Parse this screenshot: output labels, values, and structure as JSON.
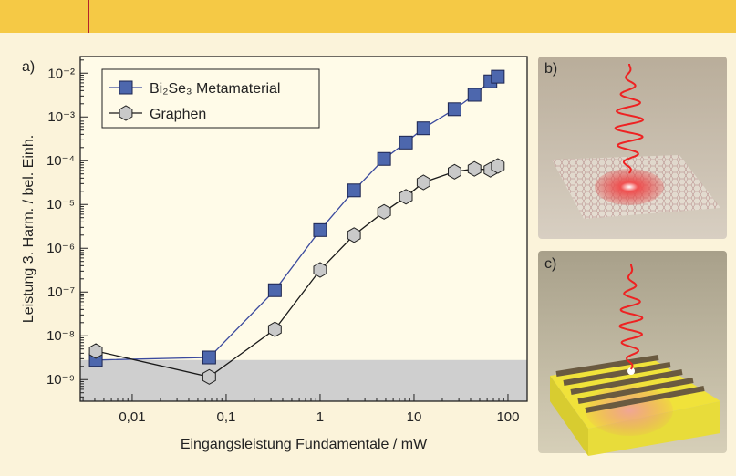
{
  "chart_data": {
    "type": "line",
    "log_x": true,
    "log_y": true,
    "panel_label": "a)",
    "x_label": "Eingangsleistung Fundamentale / mW",
    "y_label": "Leistung 3. Harm. / bel. Einh.",
    "xlim": [
      0.0028,
      160
    ],
    "ylim": [
      3.2e-10,
      0.024
    ],
    "xticks": [
      {
        "value": 0.01,
        "label": "0,01"
      },
      {
        "value": 0.1,
        "label": "0,1"
      },
      1,
      10,
      100
    ],
    "yticks": [
      {
        "value": 1e-09,
        "label": "10⁻⁹"
      },
      {
        "value": 1e-08,
        "label": "10⁻⁸"
      },
      {
        "value": 1e-07,
        "label": "10⁻⁷"
      },
      {
        "value": 1e-06,
        "label": "10⁻⁶"
      },
      {
        "value": 1e-05,
        "label": "10⁻⁵"
      },
      {
        "value": 0.0001,
        "label": "10⁻⁴"
      },
      {
        "value": 0.001,
        "label": "10⁻³"
      },
      {
        "value": 0.01,
        "label": "10⁻²"
      }
    ],
    "noise_level": 2.8e-09,
    "noise_color": "#cfcfcf",
    "series": [
      {
        "name": "Bi₂Se₃ Metamaterial",
        "color": "#3b4a9e",
        "marker": "square",
        "marker_fill": "#4d67ad",
        "x": [
          0.0041,
          0.066,
          0.33,
          1,
          2.3,
          4.8,
          8.2,
          12.6,
          27,
          44,
          65,
          78
        ],
        "values": [
          2.8e-09,
          3.2e-09,
          1.1e-07,
          2.6e-06,
          2.1e-05,
          0.00011,
          0.00026,
          0.00055,
          0.0015,
          0.0032,
          0.0065,
          0.0083
        ]
      },
      {
        "name": "Graphen",
        "color": "#1a1a1a",
        "marker": "hexagon",
        "marker_fill": "#c9c9c9",
        "x": [
          0.0041,
          0.066,
          0.33,
          1,
          2.3,
          4.8,
          8.2,
          12.6,
          27,
          44,
          65,
          78
        ],
        "values": [
          4.5e-09,
          1.15e-09,
          1.4e-08,
          3.2e-07,
          2e-06,
          6.8e-06,
          1.5e-05,
          3.2e-05,
          5.6e-05,
          6.5e-05,
          6.2e-05,
          7.6e-05
        ]
      }
    ]
  },
  "panels": {
    "b": "b)",
    "c": "c)"
  }
}
